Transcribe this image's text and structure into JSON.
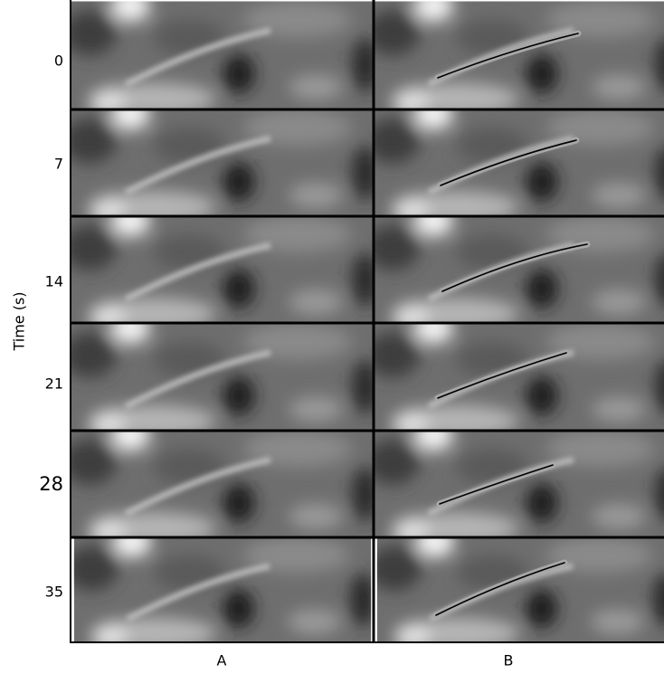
{
  "axis_label": "Time (s)",
  "rows": [
    "0",
    "7",
    "14",
    "21",
    "28",
    "35"
  ],
  "columns": [
    "A",
    "B"
  ]
}
